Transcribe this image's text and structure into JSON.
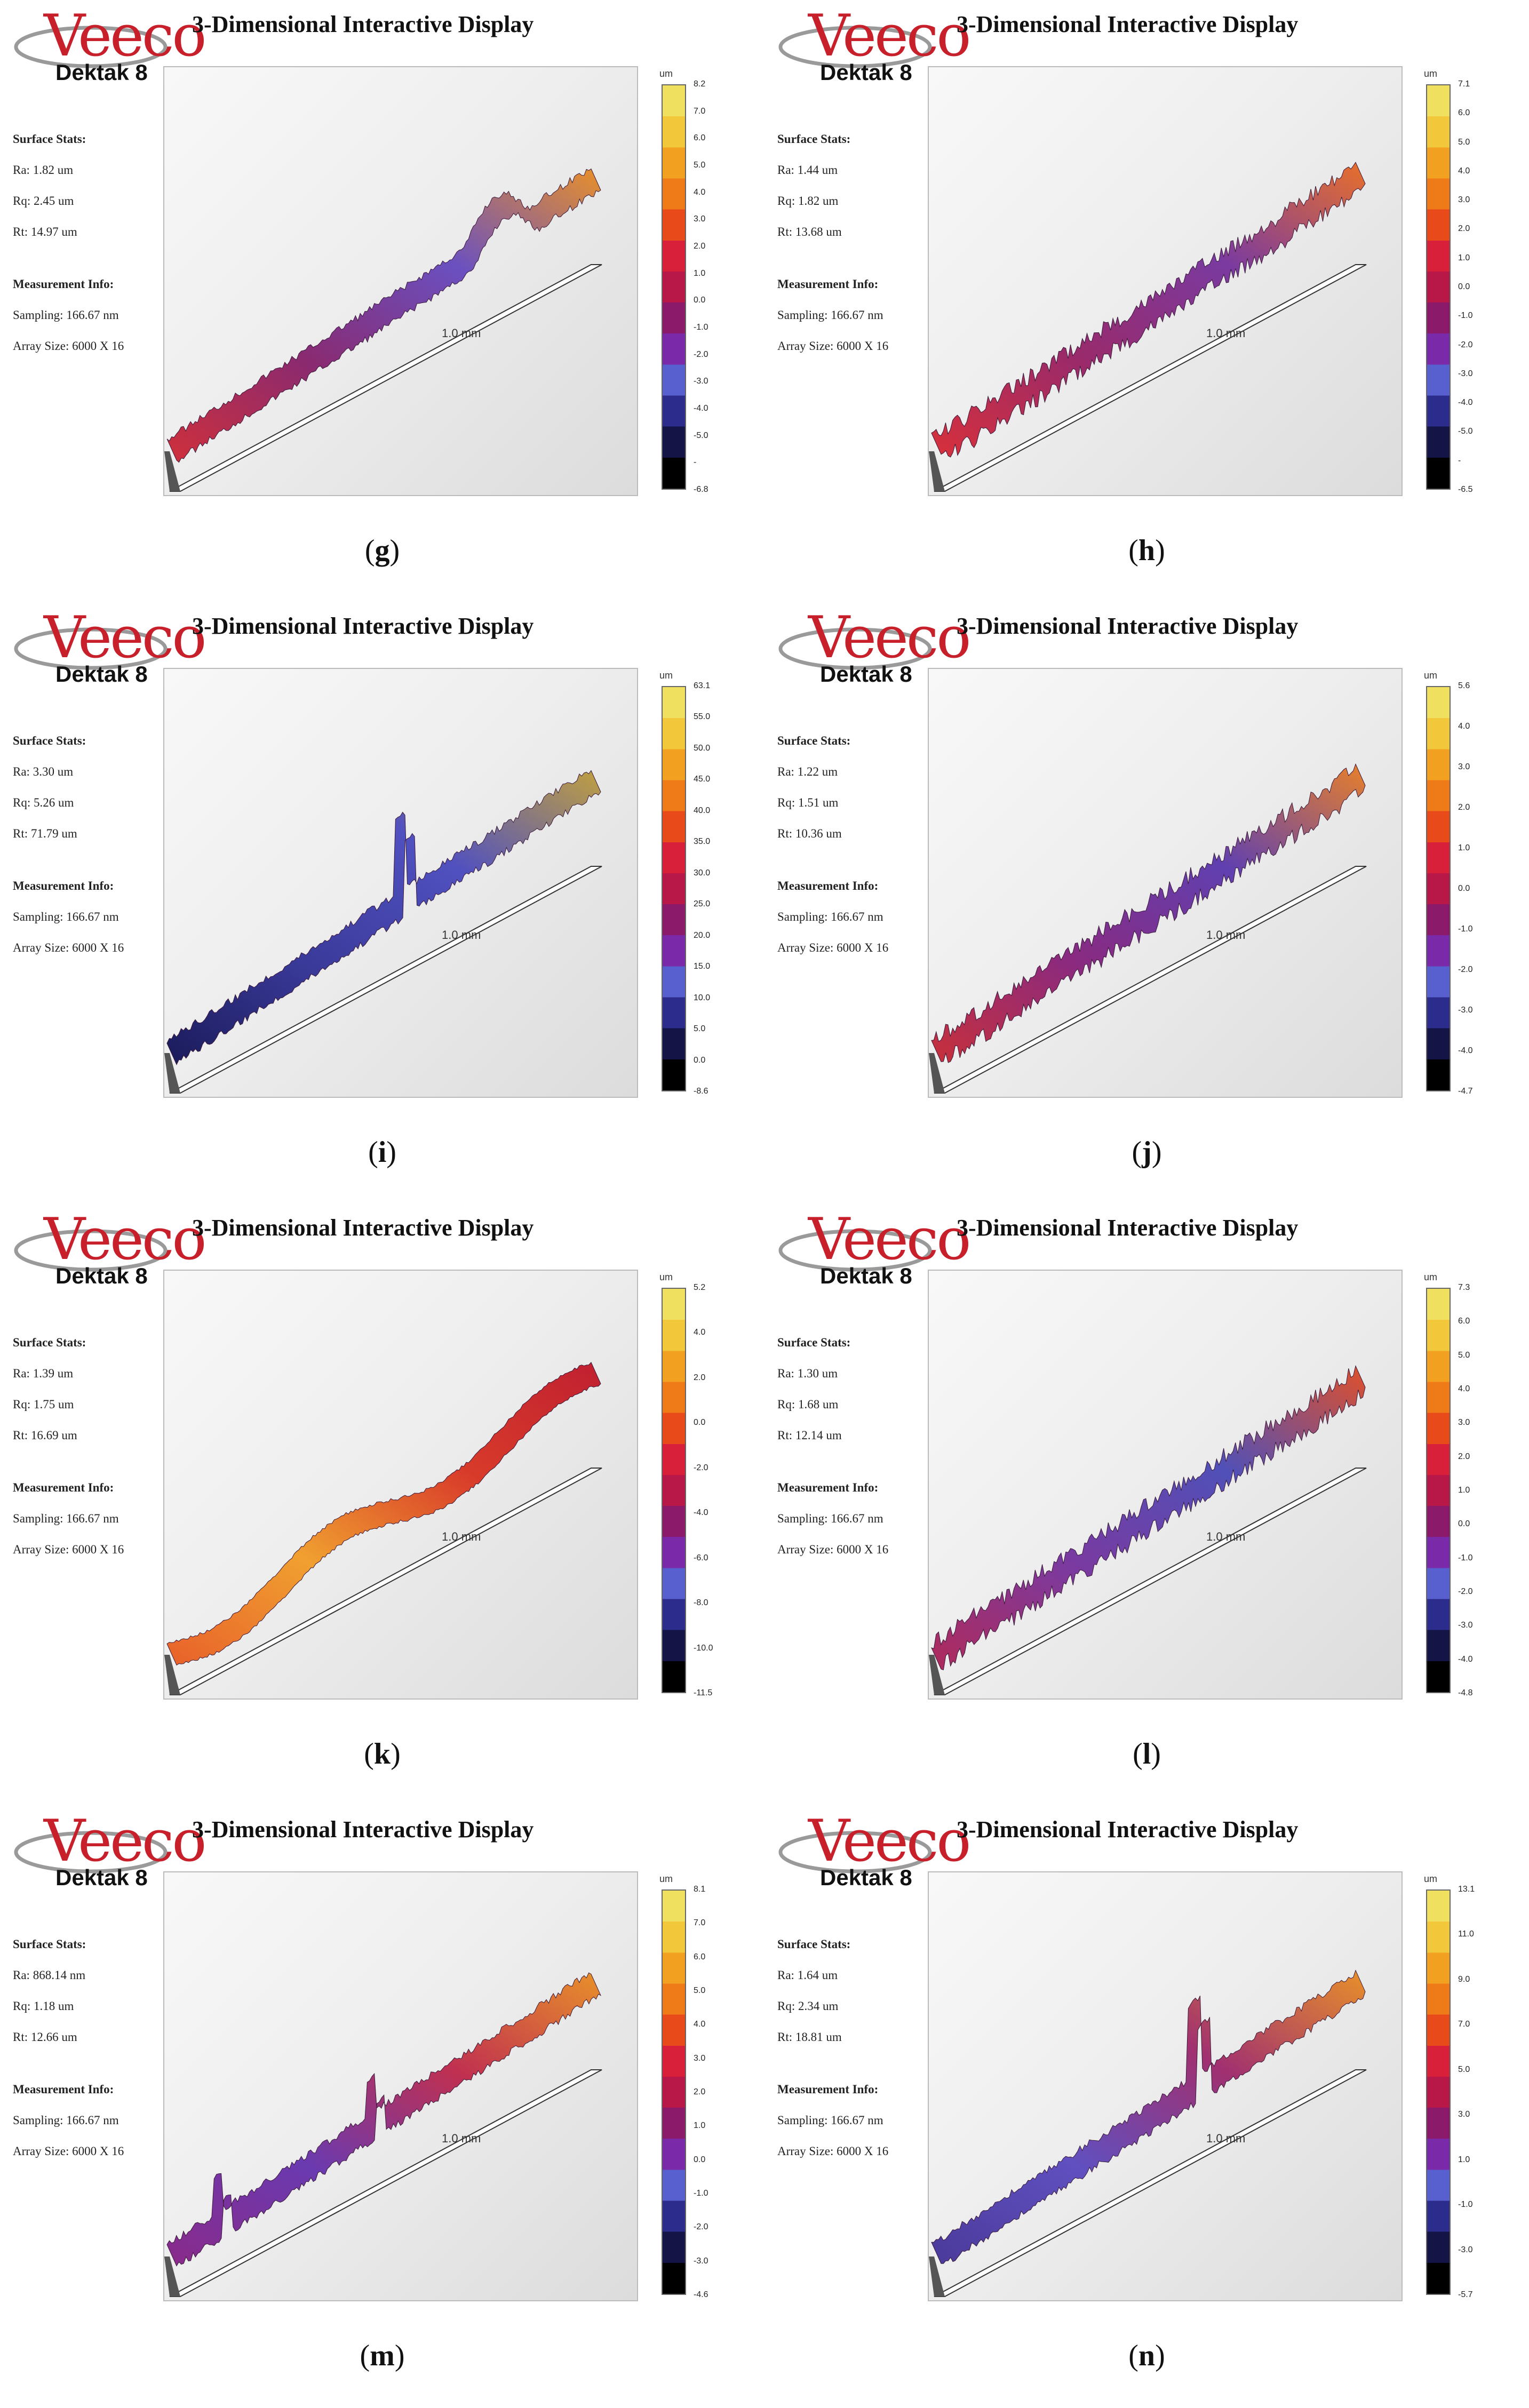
{
  "figure": {
    "common": {
      "logo_word": "Veeco",
      "logo_model": "Dektak 8",
      "display_title": "3-Dimensional Interactive Display",
      "surface_stats_label": "Surface Stats:",
      "measurement_info_label": "Measurement Info:",
      "sampling": "Sampling: 166.67 nm",
      "array_size": "Array Size: 6000 X 16",
      "scale_label": "1.0 mm",
      "unit": "um",
      "colorbar_colors": [
        "#f0e060",
        "#f2c83a",
        "#f2a020",
        "#ef7a18",
        "#e84a1a",
        "#d8203a",
        "#b81848",
        "#8c1a6a",
        "#7a2aa8",
        "#5860d0",
        "#2c2c8c",
        "#141446",
        "#000000"
      ]
    },
    "panels": [
      {
        "caption": "g",
        "ra": "Ra: 1.82 um",
        "rq": "Rq: 2.45 um",
        "rt": "Rt: 14.97 um",
        "ticks": [
          "8.2",
          "7.0",
          "6.0",
          "5.0",
          "4.0",
          "3.0",
          "2.0",
          "1.0",
          "0.0",
          "-1.0",
          "-2.0",
          "-3.0",
          "-4.0",
          "-5.0",
          "-",
          "-6.8"
        ],
        "profile": "rising",
        "palette": [
          "#d0303a",
          "#8a2a70",
          "#6a50c0",
          "#e8902a"
        ]
      },
      {
        "caption": "h",
        "ra": "Ra: 1.44 um",
        "rq": "Rq: 1.82 um",
        "rt": "Rt: 13.68 um",
        "ticks": [
          "7.1",
          "6.0",
          "5.0",
          "4.0",
          "3.0",
          "2.0",
          "1.0",
          "0.0",
          "-1.0",
          "-2.0",
          "-3.0",
          "-4.0",
          "-5.0",
          "-",
          "-6.5"
        ],
        "profile": "rough",
        "palette": [
          "#d8303a",
          "#9a2a6a",
          "#7a3aa0",
          "#e8702a"
        ]
      },
      {
        "caption": "i",
        "ra": "Ra: 3.30 um",
        "rq": "Rq: 5.26 um",
        "rt": "Rt: 71.79 um",
        "ticks": [
          "63.1",
          "55.0",
          "50.0",
          "45.0",
          "40.0",
          "35.0",
          "30.0",
          "25.0",
          "20.0",
          "15.0",
          "10.0",
          "5.0",
          "0.0",
          "-8.6"
        ],
        "profile": "spike",
        "palette": [
          "#1a1a5a",
          "#3a3a9a",
          "#5050c0",
          "#c0a040"
        ]
      },
      {
        "caption": "j",
        "ra": "Ra: 1.22 um",
        "rq": "Rq: 1.51 um",
        "rt": "Rt: 10.36 um",
        "ticks": [
          "5.6",
          "4.0",
          "3.0",
          "2.0",
          "1.0",
          "0.0",
          "-1.0",
          "-2.0",
          "-3.0",
          "-4.0",
          "-4.7"
        ],
        "profile": "rough",
        "palette": [
          "#c8303a",
          "#8a2a80",
          "#6040b0",
          "#e8802a"
        ]
      },
      {
        "caption": "k",
        "ra": "Ra: 1.39 um",
        "rq": "Rq: 1.75 um",
        "rt": "Rt: 16.69 um",
        "ticks": [
          "5.2",
          "4.0",
          "2.0",
          "0.0",
          "-2.0",
          "-4.0",
          "-6.0",
          "-8.0",
          "-10.0",
          "-11.5"
        ],
        "profile": "wavy",
        "palette": [
          "#e8602a",
          "#f0a030",
          "#d83a2a",
          "#c02030"
        ]
      },
      {
        "caption": "l",
        "ra": "Ra: 1.30 um",
        "rq": "Rq: 1.68 um",
        "rt": "Rt: 12.14 um",
        "ticks": [
          "7.3",
          "6.0",
          "5.0",
          "4.0",
          "3.0",
          "2.0",
          "1.0",
          "0.0",
          "-1.0",
          "-2.0",
          "-3.0",
          "-4.0",
          "-4.8"
        ],
        "profile": "rough",
        "palette": [
          "#b02a5a",
          "#7a3aa0",
          "#5050b8",
          "#e0502a"
        ]
      },
      {
        "caption": "m",
        "ra": "Ra: 868.14 nm",
        "rq": "Rq: 1.18 um",
        "rt": "Rt: 12.66 um",
        "ticks": [
          "8.1",
          "7.0",
          "6.0",
          "5.0",
          "4.0",
          "3.0",
          "2.0",
          "1.0",
          "0.0",
          "-1.0",
          "-2.0",
          "-3.0",
          "-4.6"
        ],
        "profile": "peaks",
        "palette": [
          "#8a2a8a",
          "#6a3ab0",
          "#c03050",
          "#e8902a"
        ]
      },
      {
        "caption": "n",
        "ra": "Ra: 1.64 um",
        "rq": "Rq: 2.34 um",
        "rt": "Rt: 18.81 um",
        "ticks": [
          "13.1",
          "11.0",
          "9.0",
          "7.0",
          "5.0",
          "3.0",
          "1.0",
          "-1.0",
          "-3.0",
          "-5.7"
        ],
        "profile": "spike",
        "palette": [
          "#4a3a9a",
          "#6050c0",
          "#a03070",
          "#e8902a"
        ]
      }
    ]
  }
}
